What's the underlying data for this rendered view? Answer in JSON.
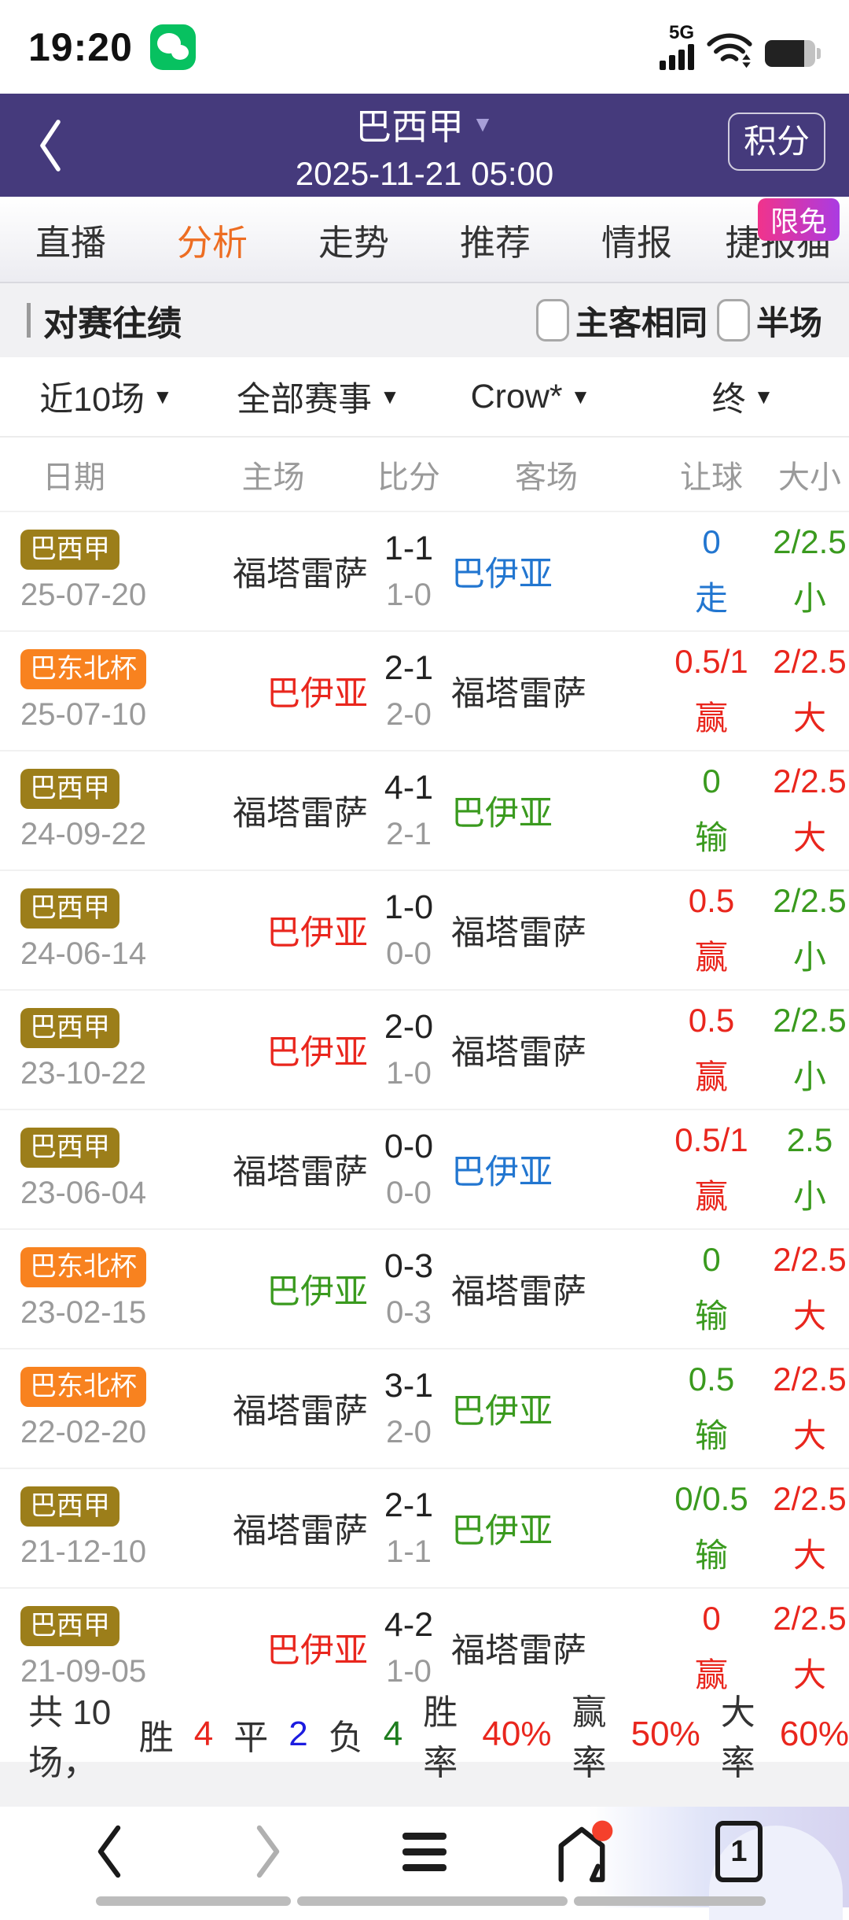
{
  "status_bar": {
    "time": "19:20",
    "network": "5G"
  },
  "header": {
    "title": "巴西甲",
    "datetime": "2025-11-21 05:00",
    "action_label": "积分"
  },
  "tabs": {
    "items": [
      "直播",
      "分析",
      "走势",
      "推荐",
      "情报",
      "捷报猫"
    ],
    "active_index": 1,
    "promo_badge": "限免"
  },
  "section": {
    "title": "对赛往绩",
    "checkboxes": [
      {
        "label": "主客相同",
        "checked": false
      },
      {
        "label": "半场",
        "checked": false
      }
    ]
  },
  "filters": [
    "近10场",
    "全部赛事",
    "Crow*",
    "终"
  ],
  "icons": {
    "dropdown": "▼"
  },
  "table": {
    "headers": [
      "日期",
      "主场",
      "比分",
      "客场",
      "让球",
      "大小"
    ],
    "rows": [
      {
        "comp": "巴西甲",
        "comp_type": "gold",
        "date": "25-07-20",
        "home": "福塔雷萨",
        "home_color": "black",
        "score_ft": "1-1",
        "score_ht": "1-0",
        "away": "巴伊亚",
        "away_color": "blue",
        "handicap": "0",
        "handicap_result": "走",
        "handicap_color": "blue",
        "ou": "2/2.5",
        "ou_result": "小",
        "ou_color": "green"
      },
      {
        "comp": "巴东北杯",
        "comp_type": "orange",
        "date": "25-07-10",
        "home": "巴伊亚",
        "home_color": "red",
        "score_ft": "2-1",
        "score_ht": "2-0",
        "away": "福塔雷萨",
        "away_color": "black",
        "handicap": "0.5/1",
        "handicap_result": "赢",
        "handicap_color": "red",
        "ou": "2/2.5",
        "ou_result": "大",
        "ou_color": "red"
      },
      {
        "comp": "巴西甲",
        "comp_type": "gold",
        "date": "24-09-22",
        "home": "福塔雷萨",
        "home_color": "black",
        "score_ft": "4-1",
        "score_ht": "2-1",
        "away": "巴伊亚",
        "away_color": "green",
        "handicap": "0",
        "handicap_result": "输",
        "handicap_color": "green",
        "ou": "2/2.5",
        "ou_result": "大",
        "ou_color": "red"
      },
      {
        "comp": "巴西甲",
        "comp_type": "gold",
        "date": "24-06-14",
        "home": "巴伊亚",
        "home_color": "red",
        "score_ft": "1-0",
        "score_ht": "0-0",
        "away": "福塔雷萨",
        "away_color": "black",
        "handicap": "0.5",
        "handicap_result": "赢",
        "handicap_color": "red",
        "ou": "2/2.5",
        "ou_result": "小",
        "ou_color": "green"
      },
      {
        "comp": "巴西甲",
        "comp_type": "gold",
        "date": "23-10-22",
        "home": "巴伊亚",
        "home_color": "red",
        "score_ft": "2-0",
        "score_ht": "1-0",
        "away": "福塔雷萨",
        "away_color": "black",
        "handicap": "0.5",
        "handicap_result": "赢",
        "handicap_color": "red",
        "ou": "2/2.5",
        "ou_result": "小",
        "ou_color": "green"
      },
      {
        "comp": "巴西甲",
        "comp_type": "gold",
        "date": "23-06-04",
        "home": "福塔雷萨",
        "home_color": "black",
        "score_ft": "0-0",
        "score_ht": "0-0",
        "away": "巴伊亚",
        "away_color": "blue",
        "handicap": "0.5/1",
        "handicap_result": "赢",
        "handicap_color": "red",
        "ou": "2.5",
        "ou_result": "小",
        "ou_color": "green"
      },
      {
        "comp": "巴东北杯",
        "comp_type": "orange",
        "date": "23-02-15",
        "home": "巴伊亚",
        "home_color": "green",
        "score_ft": "0-3",
        "score_ht": "0-3",
        "away": "福塔雷萨",
        "away_color": "black",
        "handicap": "0",
        "handicap_result": "输",
        "handicap_color": "green",
        "ou": "2/2.5",
        "ou_result": "大",
        "ou_color": "red"
      },
      {
        "comp": "巴东北杯",
        "comp_type": "orange",
        "date": "22-02-20",
        "home": "福塔雷萨",
        "home_color": "black",
        "score_ft": "3-1",
        "score_ht": "2-0",
        "away": "巴伊亚",
        "away_color": "green",
        "handicap": "0.5",
        "handicap_result": "输",
        "handicap_color": "green",
        "ou": "2/2.5",
        "ou_result": "大",
        "ou_color": "red"
      },
      {
        "comp": "巴西甲",
        "comp_type": "gold",
        "date": "21-12-10",
        "home": "福塔雷萨",
        "home_color": "black",
        "score_ft": "2-1",
        "score_ht": "1-1",
        "away": "巴伊亚",
        "away_color": "green",
        "handicap": "0/0.5",
        "handicap_result": "输",
        "handicap_color": "green",
        "ou": "2/2.5",
        "ou_result": "大",
        "ou_color": "red"
      },
      {
        "comp": "巴西甲",
        "comp_type": "gold",
        "date": "21-09-05",
        "home": "巴伊亚",
        "home_color": "red",
        "score_ft": "4-2",
        "score_ht": "1-0",
        "away": "福塔雷萨",
        "away_color": "black",
        "handicap": "0",
        "handicap_result": "赢",
        "handicap_color": "red",
        "ou": "2/2.5",
        "ou_result": "大",
        "ou_color": "red"
      }
    ]
  },
  "summary": {
    "parts": [
      {
        "text": "共 10 场，",
        "color": "dark"
      },
      {
        "text": "胜",
        "color": "dark"
      },
      {
        "text": "4",
        "color": "red"
      },
      {
        "text": "平",
        "color": "dark"
      },
      {
        "text": "2",
        "color": "pureblue"
      },
      {
        "text": "负",
        "color": "dark"
      },
      {
        "text": "4",
        "color": "dgreen"
      },
      {
        "text": "胜率",
        "color": "dark"
      },
      {
        "text": "40%",
        "color": "red"
      },
      {
        "text": "赢率",
        "color": "dark"
      },
      {
        "text": "50%",
        "color": "red"
      },
      {
        "text": "大率",
        "color": "dark"
      },
      {
        "text": "60%",
        "color": "red"
      }
    ]
  },
  "nav": {
    "tab_count": "1"
  },
  "colors": {
    "purple": "#453a7c",
    "tab_active": "#ed6d22",
    "red": "#e9261d",
    "green": "#3a9a1e",
    "blue": "#2276d0",
    "gold_badge": "#9c7e1a",
    "orange_badge": "#f8821f",
    "promo_pink": "#f1338b",
    "promo_violet": "#aa3be2",
    "wechat_green": "#07c160"
  }
}
